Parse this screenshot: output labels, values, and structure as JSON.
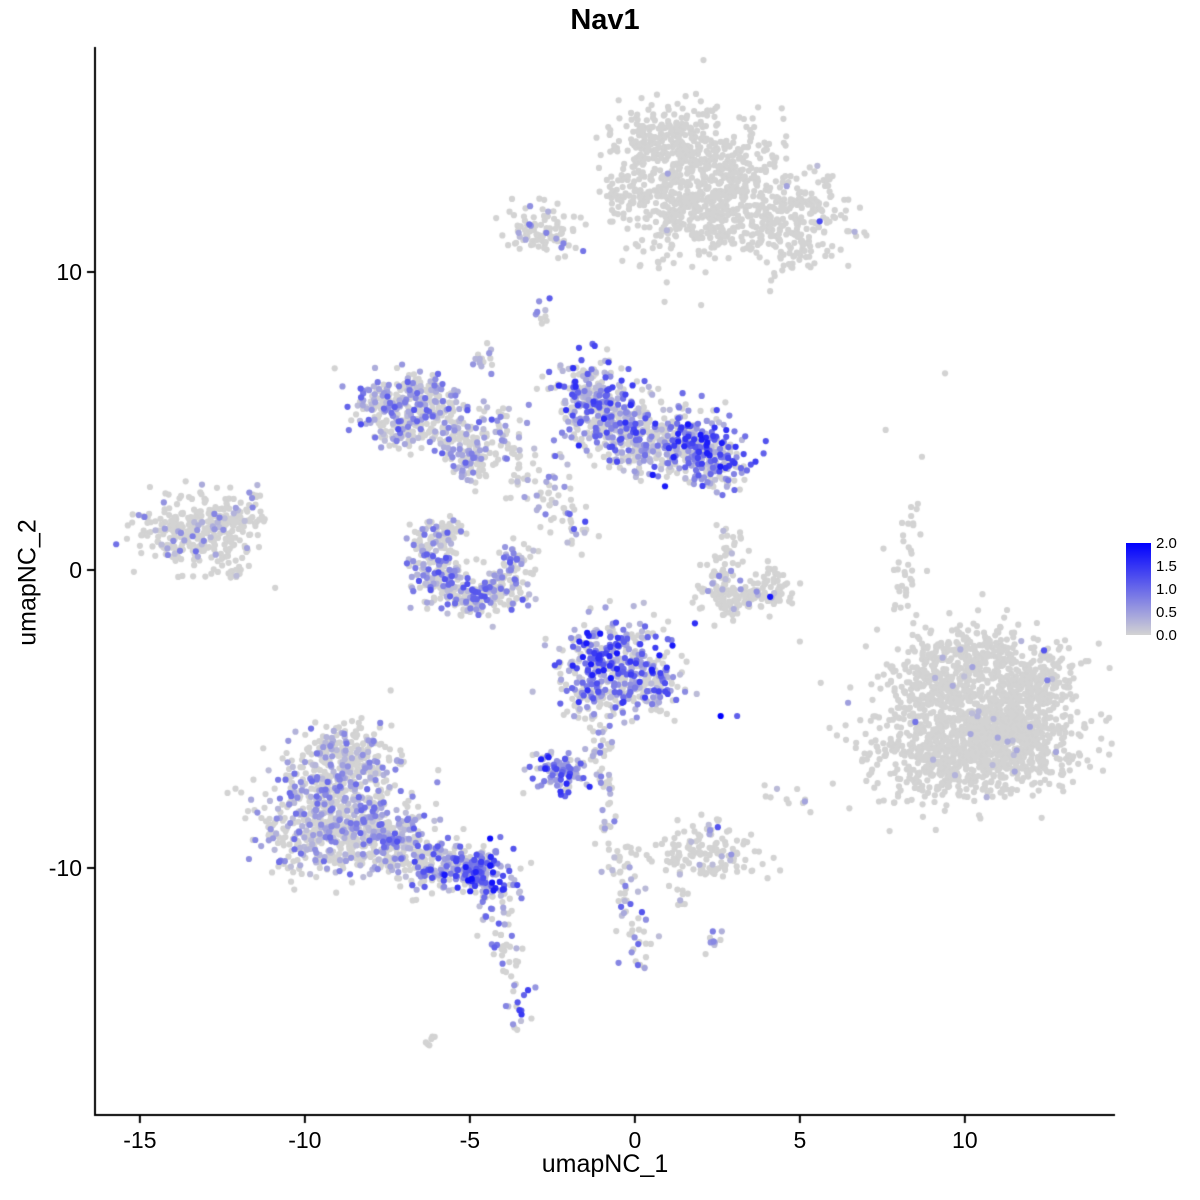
{
  "chart_data": {
    "type": "scatter",
    "title": "Nav1",
    "xlabel": "umapNC_1",
    "ylabel": "umapNC_2",
    "xlim": [
      -16.36,
      14.55
    ],
    "ylim": [
      -18.29,
      17.55
    ],
    "x_ticks": [
      "-15",
      "-10",
      "-5",
      "0",
      "5",
      "10"
    ],
    "y_ticks": [
      "-10",
      "0",
      "10"
    ],
    "grid": false,
    "legend_position": "right",
    "legend": {
      "min": 0,
      "max": 2,
      "ticks": [
        "2.0",
        "1.5",
        "1.0",
        "0.5",
        "0.0"
      ]
    },
    "colors": {
      "low": "#D3D3D3",
      "high": "#0000FF",
      "axis": "#000000",
      "background": "#FFFFFF"
    },
    "point_radius": 3.1,
    "seed": 42,
    "cluster_fields": [
      "x",
      "y",
      "sx",
      "sy",
      "n",
      "pos_frac",
      "max_expr"
    ],
    "clusters": [
      [
        2.0,
        13.4,
        1.25,
        0.95,
        480,
        0.015,
        0.5
      ],
      [
        0.9,
        14.5,
        0.75,
        0.55,
        150,
        0.01,
        0.4
      ],
      [
        3.1,
        12.1,
        1.0,
        0.7,
        200,
        0.015,
        0.4
      ],
      [
        4.6,
        11.2,
        0.85,
        0.6,
        150,
        0.02,
        0.5
      ],
      [
        1.3,
        11.7,
        0.7,
        0.8,
        130,
        0.015,
        0.4
      ],
      [
        5.4,
        12.4,
        0.5,
        0.45,
        60,
        0.02,
        0.4
      ],
      [
        -0.2,
        12.6,
        0.4,
        0.5,
        50,
        0.02,
        0.4
      ],
      [
        -2.8,
        11.4,
        0.5,
        0.45,
        100,
        0.12,
        0.9
      ],
      [
        -2.8,
        8.6,
        0.15,
        0.2,
        10,
        0.35,
        1.2
      ],
      [
        -4.6,
        7.1,
        0.2,
        0.25,
        14,
        0.25,
        0.9
      ],
      [
        -7.5,
        5.5,
        0.55,
        0.45,
        130,
        0.5,
        1.3
      ],
      [
        -6.5,
        5.9,
        0.5,
        0.35,
        100,
        0.35,
        1.1
      ],
      [
        -5.8,
        5.1,
        0.4,
        0.4,
        80,
        0.35,
        1.1
      ],
      [
        -6.9,
        4.6,
        0.45,
        0.3,
        70,
        0.3,
        1.0
      ],
      [
        -5.3,
        4.3,
        0.4,
        0.35,
        70,
        0.4,
        1.2
      ],
      [
        -4.9,
        3.6,
        0.35,
        0.3,
        60,
        0.45,
        1.3
      ],
      [
        -4.2,
        4.7,
        0.5,
        0.5,
        40,
        0.3,
        1.0
      ],
      [
        -3.4,
        3.4,
        0.4,
        0.55,
        35,
        0.35,
        1.0
      ],
      [
        -2.6,
        2.4,
        0.3,
        0.55,
        28,
        0.3,
        1.0
      ],
      [
        -1.7,
        1.5,
        0.25,
        0.55,
        22,
        0.4,
        1.4
      ],
      [
        -1.1,
        5.7,
        0.7,
        0.7,
        280,
        0.55,
        1.6
      ],
      [
        -0.3,
        4.6,
        0.7,
        0.55,
        180,
        0.45,
        1.3
      ],
      [
        0.6,
        4.1,
        0.6,
        0.45,
        130,
        0.4,
        1.2
      ],
      [
        1.9,
        4.2,
        0.6,
        0.6,
        230,
        0.65,
        1.8
      ],
      [
        2.6,
        3.4,
        0.4,
        0.4,
        80,
        0.5,
        1.5
      ],
      [
        -6.2,
        0.7,
        0.35,
        0.5,
        80,
        0.45,
        1.3
      ],
      [
        -5.9,
        -0.4,
        0.45,
        0.4,
        95,
        0.5,
        1.3
      ],
      [
        -5.0,
        -0.9,
        0.5,
        0.35,
        100,
        0.45,
        1.3
      ],
      [
        -4.0,
        -0.6,
        0.4,
        0.35,
        80,
        0.4,
        1.2
      ],
      [
        -3.6,
        0.3,
        0.3,
        0.3,
        45,
        0.45,
        1.2
      ],
      [
        -5.7,
        1.3,
        0.3,
        0.3,
        40,
        0.3,
        1.0
      ],
      [
        -13.5,
        1.3,
        0.85,
        0.6,
        280,
        0.12,
        1.0
      ],
      [
        -12.3,
        1.8,
        0.5,
        0.4,
        80,
        0.1,
        0.9
      ],
      [
        -12.3,
        0.1,
        0.35,
        0.25,
        20,
        0.05,
        0.5
      ],
      [
        -11.5,
        2.6,
        0.2,
        0.15,
        8,
        0.2,
        0.8
      ],
      [
        3.3,
        -0.9,
        0.75,
        0.3,
        120,
        0.08,
        0.8
      ],
      [
        2.6,
        -0.3,
        0.25,
        0.4,
        35,
        0.12,
        0.8
      ],
      [
        4.2,
        -0.4,
        0.25,
        0.4,
        35,
        0.1,
        0.8
      ],
      [
        2.9,
        0.9,
        0.25,
        0.45,
        25,
        0.15,
        0.9
      ],
      [
        -0.7,
        -3.1,
        0.8,
        0.7,
        330,
        0.7,
        1.8
      ],
      [
        0.3,
        -4.0,
        0.55,
        0.5,
        130,
        0.5,
        1.5
      ],
      [
        -1.4,
        -4.3,
        0.4,
        0.4,
        60,
        0.4,
        1.2
      ],
      [
        -1.1,
        -5.6,
        0.2,
        0.5,
        24,
        0.3,
        1.0
      ],
      [
        -0.9,
        -7.2,
        0.15,
        0.6,
        16,
        0.25,
        1.0
      ],
      [
        -0.8,
        -8.8,
        0.15,
        0.5,
        10,
        0.2,
        0.8
      ],
      [
        -2.2,
        -6.8,
        0.45,
        0.35,
        95,
        0.8,
        1.7
      ],
      [
        -9.0,
        -7.6,
        1.1,
        0.9,
        400,
        0.35,
        1.0
      ],
      [
        -9.7,
        -9.0,
        0.8,
        0.7,
        220,
        0.35,
        1.0
      ],
      [
        -8.0,
        -8.8,
        0.8,
        0.6,
        200,
        0.4,
        1.1
      ],
      [
        -8.7,
        -6.1,
        0.7,
        0.5,
        150,
        0.3,
        0.9
      ],
      [
        -7.0,
        -9.4,
        0.6,
        0.5,
        120,
        0.45,
        1.2
      ],
      [
        -6.1,
        -10.0,
        0.5,
        0.4,
        100,
        0.5,
        1.4
      ],
      [
        -5.3,
        -9.8,
        0.4,
        0.35,
        80,
        0.6,
        1.5
      ],
      [
        -4.6,
        -10.2,
        0.45,
        0.4,
        140,
        0.85,
        1.9
      ],
      [
        -4.3,
        -11.6,
        0.25,
        0.5,
        28,
        0.4,
        1.2
      ],
      [
        -3.9,
        -12.9,
        0.2,
        0.6,
        20,
        0.35,
        1.0
      ],
      [
        -3.6,
        -14.7,
        0.25,
        0.5,
        18,
        0.5,
        1.5
      ],
      [
        -6.1,
        -15.9,
        0.15,
        0.15,
        6,
        0.2,
        0.6
      ],
      [
        -0.4,
        -9.9,
        0.3,
        0.5,
        28,
        0.15,
        0.8
      ],
      [
        -0.2,
        -11.4,
        0.25,
        0.6,
        24,
        0.35,
        1.2
      ],
      [
        0.1,
        -12.9,
        0.3,
        0.4,
        14,
        0.3,
        1.0
      ],
      [
        2.3,
        -9.5,
        0.8,
        0.4,
        130,
        0.06,
        0.6
      ],
      [
        2.4,
        -8.6,
        0.18,
        0.2,
        8,
        0.7,
        1.5
      ],
      [
        2.3,
        -12.4,
        0.2,
        0.3,
        10,
        0.6,
        1.5
      ],
      [
        1.4,
        -11.0,
        0.15,
        0.3,
        8,
        0.4,
        1.2
      ],
      [
        10.3,
        -4.8,
        1.5,
        1.2,
        850,
        0.012,
        0.5
      ],
      [
        11.5,
        -5.8,
        1.0,
        0.8,
        350,
        0.012,
        0.5
      ],
      [
        9.2,
        -6.3,
        0.9,
        0.75,
        280,
        0.02,
        0.5
      ],
      [
        12.3,
        -4.0,
        0.6,
        0.6,
        130,
        0.02,
        0.5
      ],
      [
        10.8,
        -2.9,
        0.8,
        0.5,
        140,
        0.015,
        0.4
      ],
      [
        9.0,
        -3.5,
        0.5,
        0.6,
        120,
        0.015,
        0.4
      ],
      [
        8.2,
        -0.2,
        0.25,
        0.9,
        24,
        0.04,
        0.5
      ],
      [
        8.4,
        1.5,
        0.2,
        0.5,
        12,
        0.04,
        0.5
      ],
      [
        5.0,
        -7.8,
        0.2,
        0.2,
        6,
        0.1,
        0.5
      ],
      [
        4.2,
        -7.6,
        0.15,
        0.15,
        4,
        0.1,
        0.5
      ]
    ],
    "single_fields": [
      "x",
      "y",
      "expr"
    ],
    "singles": [
      [
        5.6,
        11.7,
        1.3
      ],
      [
        -3.2,
        11.6,
        0.9
      ],
      [
        2.6,
        -4.9,
        2.0
      ],
      [
        3.1,
        -4.9,
        1.1
      ],
      [
        4.1,
        -0.9,
        1.8
      ],
      [
        12.4,
        -2.7,
        1.2
      ],
      [
        12.5,
        -3.7,
        0.8
      ],
      [
        8.5,
        -5.1,
        0.9
      ],
      [
        9.4,
        6.6,
        0
      ],
      [
        7.6,
        4.7,
        0
      ],
      [
        8.7,
        3.8,
        0
      ],
      [
        0.9,
        9.0,
        0
      ],
      [
        5.9,
        -5.3,
        0
      ],
      [
        6.5,
        -8.0,
        0
      ],
      [
        -10.9,
        -0.6,
        0
      ],
      [
        4.6,
        -7.7,
        0
      ],
      [
        5.0,
        -2.4,
        0
      ]
    ]
  }
}
